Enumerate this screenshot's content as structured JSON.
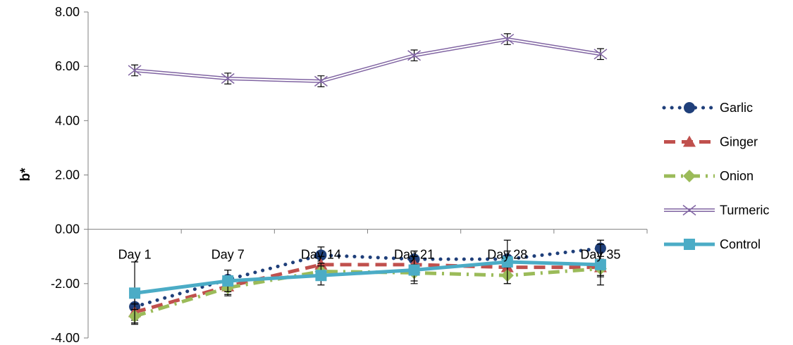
{
  "chart_data": {
    "type": "line",
    "title": "",
    "xlabel": "",
    "ylabel": "b*",
    "categories": [
      "Day 1",
      "Day 7",
      "Day 14",
      "Day 21",
      "Day 28",
      "Day 35"
    ],
    "ylim": [
      -4,
      8
    ],
    "yticks": [
      "-4.00",
      "-2.00",
      "0.00",
      "2.00",
      "4.00",
      "6.00",
      "8.00"
    ],
    "grid": false,
    "legend_position": "right",
    "series": [
      {
        "name": "Garlic",
        "values": [
          -2.85,
          -1.85,
          -0.95,
          -1.1,
          -1.1,
          -0.7
        ],
        "errors": [
          0.6,
          0.35,
          0.3,
          0.3,
          0.3,
          0.3
        ],
        "color": "#1f3f7a",
        "line": "dotted",
        "marker": "circle"
      },
      {
        "name": "Ginger",
        "values": [
          -3.05,
          -2.1,
          -1.3,
          -1.3,
          -1.4,
          -1.4
        ],
        "errors": [
          0.3,
          0.3,
          0.3,
          0.3,
          0.3,
          0.3
        ],
        "color": "#c0504d",
        "line": "dashed",
        "marker": "triangle"
      },
      {
        "name": "Onion",
        "values": [
          -3.2,
          -2.15,
          -1.55,
          -1.6,
          -1.7,
          -1.45
        ],
        "errors": [
          0.25,
          0.3,
          0.3,
          0.3,
          0.3,
          0.3
        ],
        "color": "#9bbb59",
        "line": "dashdot",
        "marker": "diamond"
      },
      {
        "name": "Turmeric",
        "values": [
          5.85,
          5.55,
          5.45,
          6.4,
          7.0,
          6.45
        ],
        "errors": [
          0.2,
          0.2,
          0.2,
          0.2,
          0.2,
          0.2
        ],
        "color": "#8064a2",
        "line": "double",
        "marker": "x"
      },
      {
        "name": "Control",
        "values": [
          -2.35,
          -1.9,
          -1.7,
          -1.5,
          -1.2,
          -1.3
        ],
        "errors": [
          1.15,
          0.4,
          0.35,
          0.5,
          0.8,
          0.75
        ],
        "color": "#4bacc6",
        "line": "solid",
        "marker": "square"
      }
    ]
  }
}
